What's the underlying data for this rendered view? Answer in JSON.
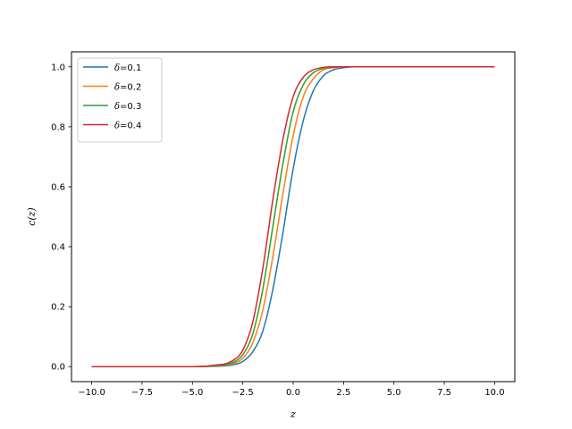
{
  "chart_data": {
    "type": "line",
    "title": "",
    "xlabel": "z",
    "ylabel": "c(z)",
    "xlim": [
      -11,
      11
    ],
    "ylim": [
      -0.05,
      1.05
    ],
    "xticks": [
      -10.0,
      -7.5,
      -5.0,
      -2.5,
      0.0,
      2.5,
      5.0,
      7.5,
      10.0
    ],
    "xtick_labels": [
      "−10.0",
      "−7.5",
      "−5.0",
      "−2.5",
      "0.0",
      "2.5",
      "5.0",
      "7.5",
      "10.0"
    ],
    "yticks": [
      0.0,
      0.2,
      0.4,
      0.6,
      0.8,
      1.0
    ],
    "ytick_labels": [
      "0.0",
      "0.2",
      "0.4",
      "0.6",
      "0.8",
      "1.0"
    ],
    "grid": false,
    "legend": {
      "placement": "top-left"
    },
    "x": [
      -10.0,
      -5.0,
      -4.0,
      -3.0,
      -2.5,
      -2.0,
      -1.5,
      -1.0,
      -0.5,
      0.0,
      0.5,
      1.0,
      1.5,
      2.0,
      2.5,
      3.0,
      4.0,
      5.0,
      10.0
    ],
    "series": [
      {
        "name": "δ=0.1",
        "color": "#1f77b4",
        "values": [
          0.0,
          0.0,
          0.001,
          0.006,
          0.017,
          0.05,
          0.12,
          0.26,
          0.45,
          0.66,
          0.82,
          0.92,
          0.97,
          0.99,
          0.997,
          1.0,
          1.0,
          1.0,
          1.0
        ]
      },
      {
        "name": "δ=0.2",
        "color": "#ff7f0e",
        "values": [
          0.0,
          0.0,
          0.002,
          0.01,
          0.028,
          0.08,
          0.19,
          0.37,
          0.58,
          0.77,
          0.9,
          0.96,
          0.99,
          0.997,
          1.0,
          1.0,
          1.0,
          1.0,
          1.0
        ]
      },
      {
        "name": "δ=0.3",
        "color": "#2ca02c",
        "values": [
          0.0,
          0.0,
          0.003,
          0.014,
          0.04,
          0.11,
          0.26,
          0.47,
          0.68,
          0.85,
          0.94,
          0.98,
          0.995,
          0.999,
          1.0,
          1.0,
          1.0,
          1.0,
          1.0
        ]
      },
      {
        "name": "δ=0.4",
        "color": "#d62728",
        "values": [
          0.0,
          0.0,
          0.004,
          0.02,
          0.055,
          0.15,
          0.33,
          0.56,
          0.76,
          0.9,
          0.965,
          0.99,
          0.998,
          1.0,
          1.0,
          1.0,
          1.0,
          1.0,
          1.0
        ]
      }
    ]
  }
}
